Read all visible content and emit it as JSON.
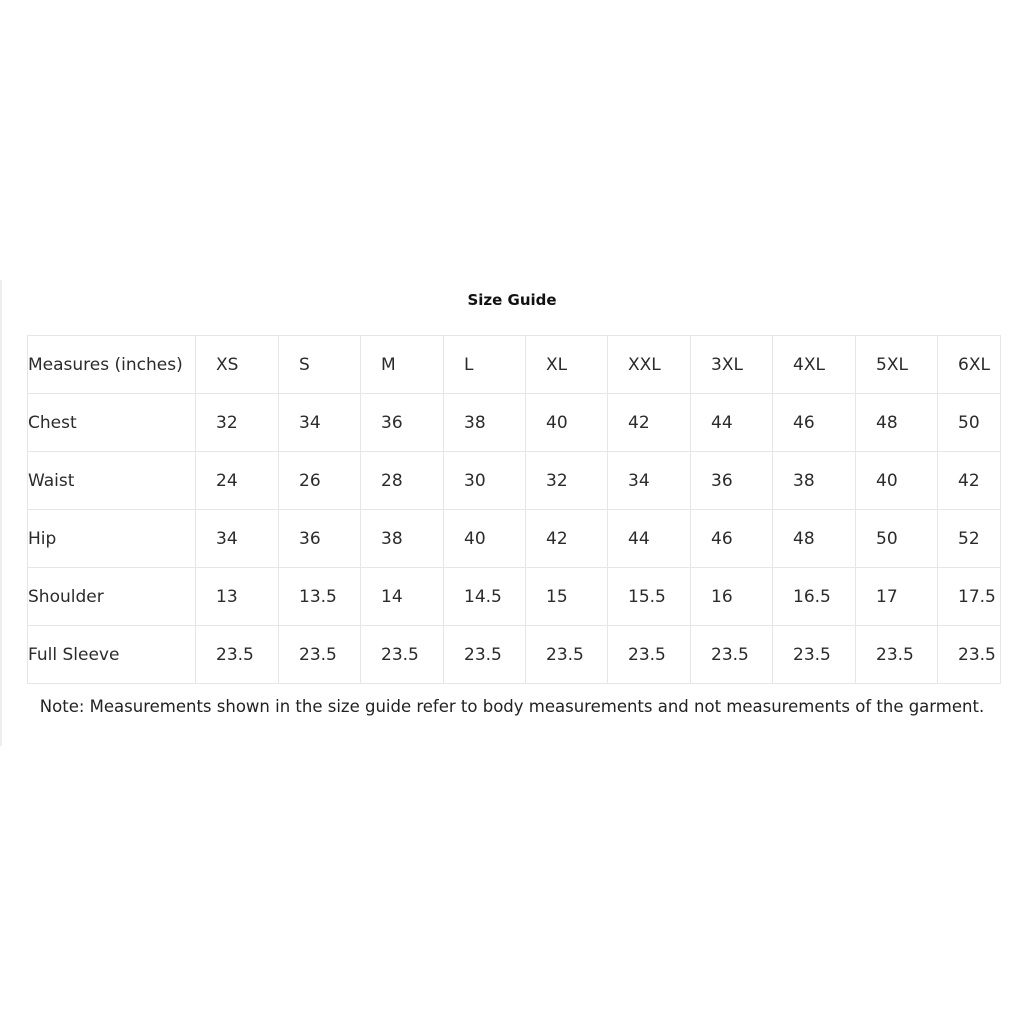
{
  "title": "Size Guide",
  "header": [
    "Measures (inches)",
    "XS",
    "S",
    "M",
    "L",
    "XL",
    "XXL",
    "3XL",
    "4XL",
    "5XL",
    "6XL"
  ],
  "rows": [
    [
      "Chest",
      "32",
      "34",
      "36",
      "38",
      "40",
      "42",
      "44",
      "46",
      "48",
      "50"
    ],
    [
      "Waist",
      "24",
      "26",
      "28",
      "30",
      "32",
      "34",
      "36",
      "38",
      "40",
      "42"
    ],
    [
      "Hip",
      "34",
      "36",
      "38",
      "40",
      "42",
      "44",
      "46",
      "48",
      "50",
      "52"
    ],
    [
      "Shoulder",
      "13",
      "13.5",
      "14",
      "14.5",
      "15",
      "15.5",
      "16",
      "16.5",
      "17",
      "17.5"
    ],
    [
      "Full Sleeve",
      "23.5",
      "23.5",
      "23.5",
      "23.5",
      "23.5",
      "23.5",
      "23.5",
      "23.5",
      "23.5",
      "23.5"
    ]
  ],
  "note": "Note: Measurements shown in the size guide refer to body measurements and not measurements of the garment."
}
